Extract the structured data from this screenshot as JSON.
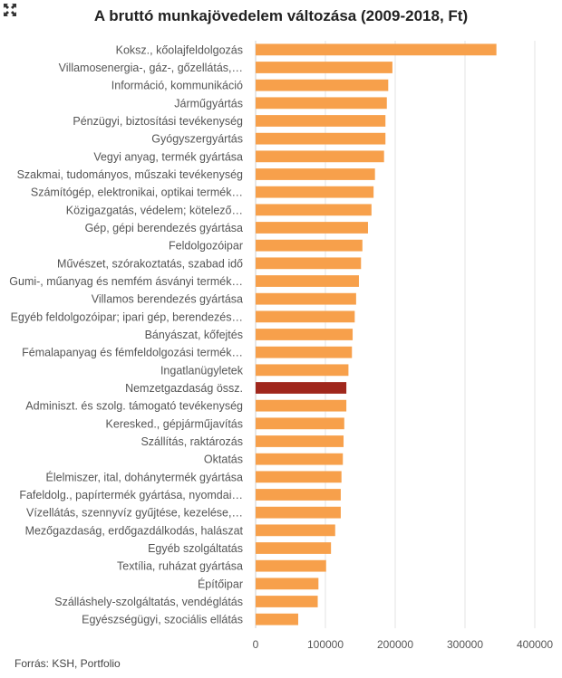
{
  "ui": {
    "expand_icon": "expand-arrows-icon",
    "source": "Forrás: KSH, Portfolio"
  },
  "chart_data": {
    "type": "bar",
    "orientation": "horizontal",
    "title": "A bruttó munkajövedelem változása (2009-2018, Ft)",
    "xlim": [
      0,
      400000
    ],
    "xticks": [
      0,
      100000,
      200000,
      300000,
      400000
    ],
    "xtick_labels": [
      "0",
      "100000",
      "200000",
      "300000",
      "400000"
    ],
    "grid": true,
    "bar_color": "#f7a04b",
    "highlight_color": "#a0271c",
    "highlight_category": "Nemzetgazdaság össz.",
    "categories": [
      "Koksz., kőolajfeldolgozás",
      "Villamosenergia-, gáz-, gőzellátás,…",
      "Információ, kommunikáció",
      "Járműgyártás",
      "Pénzügyi, biztosítási tevékenység",
      "Gyógyszergyártás",
      "Vegyi anyag, termék gyártása",
      "Szakmai, tudományos, műszaki tevékenység",
      "Számítógép, elektronikai, optikai termék…",
      "Közigazgatás, védelem; kötelező…",
      "Gép, gépi berendezés gyártása",
      "Feldolgozóipar",
      "Művészet, szórakoztatás, szabad idő",
      "Gumi-, műanyag és nemfém ásványi termék…",
      "Villamos berendezés gyártása",
      "Egyéb feldolgozóipar; ipari gép, berendezés…",
      "Bányászat, kőfejtés",
      "Fémalapanyag és fémfeldolgozási termék…",
      "Ingatlanügyletek",
      "Nemzetgazdaság össz.",
      "Adminiszt. és szolg. támogató tevékenység",
      "Keresked., gépjárműjavítás",
      "Szállítás, raktározás",
      "Oktatás",
      "Élelmiszer, ital, dohánytermék gyártása",
      "Fafeldolg., papírtermék gyártása, nyomdai…",
      "Vízellátás, szennyvíz gyűjtése, kezelése,…",
      "Mezőgazdaság, erdőgazdálkodás, halászat",
      "Egyéb szolgáltatás",
      "Textília, ruházat gyártása",
      "Építőipar",
      "Szálláshely-szolgáltatás, vendéglátás",
      "Egyészségügyi, szociális ellátás"
    ],
    "values": [
      345000,
      196000,
      190000,
      188000,
      186000,
      186000,
      184000,
      171000,
      169000,
      166000,
      161000,
      153000,
      151000,
      148000,
      144000,
      142000,
      139000,
      138000,
      133000,
      130000,
      130000,
      127000,
      126000,
      125000,
      123000,
      122000,
      122000,
      114000,
      108000,
      101000,
      90000,
      89000,
      61000
    ]
  }
}
